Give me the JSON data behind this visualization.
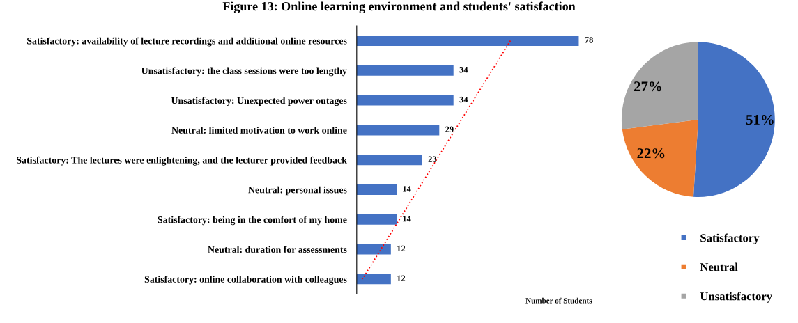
{
  "chart_data": [
    {
      "type": "bar",
      "orientation": "horizontal",
      "title": "Figure 13: Online learning environment and students' satisfaction",
      "xlabel": "Number of Students",
      "categories": [
        "Satisfactory: availability of lecture recordings and additional online resources",
        "Unsatisfactory: the class sessions were too lengthy",
        "Unsatisfactory: Unexpected power outages",
        "Neutral: limited motivation to work online",
        "Satisfactory: The lectures were enlightening, and the lecturer provided feedback",
        "Neutral: personal issues",
        "Satisfactory: being in the comfort of my home",
        "Neutral: duration for assessments",
        "Satisfactory: online collaboration with colleagues"
      ],
      "series": [
        {
          "type": "bar",
          "color": "#4472c4",
          "values": [
            78,
            34,
            34,
            29,
            23,
            14,
            14,
            12,
            12
          ],
          "data_labels": true
        },
        {
          "type": "line",
          "color": "#ff0000",
          "line_style": "dotted",
          "values": [
            54,
            47.5,
            41,
            34.5,
            28,
            21.5,
            15,
            8.5,
            2
          ]
        }
      ],
      "tick_labels": "y"
    },
    {
      "type": "pie",
      "categories": [
        "Satisfactory",
        "Neutral",
        "Unsatisfactory"
      ],
      "values": [
        51,
        22,
        27
      ],
      "colors": [
        "#4472c4",
        "#ed7d31",
        "#a5a5a5"
      ],
      "value_labels": [
        "51%",
        "22%",
        "27%"
      ],
      "legend": "bottom right"
    }
  ]
}
